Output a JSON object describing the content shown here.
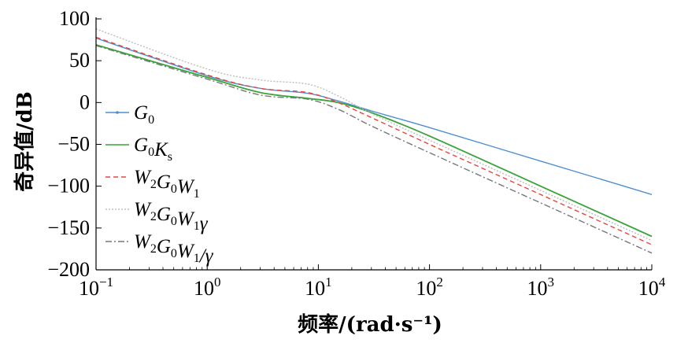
{
  "chart_data": {
    "type": "line",
    "title": "",
    "xlabel": "频率/(rad·s⁻¹)",
    "ylabel": "奇异值/dB",
    "xscale": "log",
    "xlim": [
      0.1,
      10000
    ],
    "ylim": [
      -200,
      100
    ],
    "grid": false,
    "legend_position": "left-center",
    "x_ticks": [
      {
        "value": 0.1,
        "base": "10",
        "exp": "−1"
      },
      {
        "value": 1,
        "base": "10",
        "exp": "0"
      },
      {
        "value": 10,
        "base": "10",
        "exp": "1"
      },
      {
        "value": 100,
        "base": "10",
        "exp": "2"
      },
      {
        "value": 1000,
        "base": "10",
        "exp": "3"
      },
      {
        "value": 10000,
        "base": "10",
        "exp": "4"
      }
    ],
    "y_ticks": [
      {
        "value": 100,
        "label": "100"
      },
      {
        "value": 50,
        "label": "50"
      },
      {
        "value": 0,
        "label": "0"
      },
      {
        "value": -50,
        "label": "−50"
      },
      {
        "value": -100,
        "label": "−100"
      },
      {
        "value": -150,
        "label": "−150"
      },
      {
        "value": -200,
        "label": "−200"
      }
    ],
    "series": [
      {
        "name": "G0",
        "legend": [
          {
            "t": "G",
            "sub": "0"
          }
        ],
        "color": "#4f8fd0",
        "dash": "",
        "marker": "dot",
        "x": [
          0.1,
          1,
          3,
          8,
          15,
          30,
          100,
          1000,
          10000
        ],
        "y": [
          77,
          32,
          17,
          11,
          2,
          -10,
          -30,
          -70,
          -110
        ]
      },
      {
        "name": "G0Ks",
        "legend": [
          {
            "t": "G",
            "sub": "0"
          },
          {
            "t": "K",
            "sub": "s"
          }
        ],
        "color": "#3aa33a",
        "dash": "",
        "marker": "",
        "x": [
          0.1,
          1,
          3,
          8,
          15,
          30,
          100,
          1000,
          10000
        ],
        "y": [
          69,
          30,
          12,
          5,
          0,
          -12,
          -40,
          -100,
          -160
        ]
      },
      {
        "name": "W2G0W1",
        "legend": [
          {
            "t": "W",
            "sub": "2"
          },
          {
            "t": "G",
            "sub": "0"
          },
          {
            "t": "W",
            "sub": "1"
          }
        ],
        "color": "#e8453c",
        "dash": "6,4",
        "marker": "",
        "x": [
          0.1,
          1,
          3,
          8,
          15,
          30,
          100,
          1000,
          10000
        ],
        "y": [
          78,
          33,
          17,
          12,
          0,
          -18,
          -50,
          -110,
          -170
        ]
      },
      {
        "name": "W2G0W1γ",
        "legend": [
          {
            "t": "W",
            "sub": "2"
          },
          {
            "t": "G",
            "sub": "0"
          },
          {
            "t": "W",
            "sub": "1"
          },
          {
            "t": "γ",
            "sub": ""
          }
        ],
        "color": "#bdbdbd",
        "dash": "2,2",
        "marker": "",
        "x": [
          0.1,
          1,
          3,
          8,
          15,
          30,
          100,
          1000,
          10000
        ],
        "y": [
          88,
          40,
          27,
          22,
          8,
          -13,
          -45,
          -105,
          -165
        ]
      },
      {
        "name": "W2G0W1/γ",
        "legend": [
          {
            "t": "W",
            "sub": "2"
          },
          {
            "t": "G",
            "sub": "0"
          },
          {
            "t": "W",
            "sub": "1"
          },
          {
            "t": "/γ",
            "sub": ""
          }
        ],
        "color": "#777777",
        "dash": "8,3,2,3",
        "marker": "",
        "x": [
          0.1,
          1,
          3,
          8,
          15,
          30,
          100,
          1000,
          10000
        ],
        "y": [
          68,
          28,
          9,
          4,
          -8,
          -28,
          -60,
          -120,
          -180
        ]
      }
    ]
  }
}
